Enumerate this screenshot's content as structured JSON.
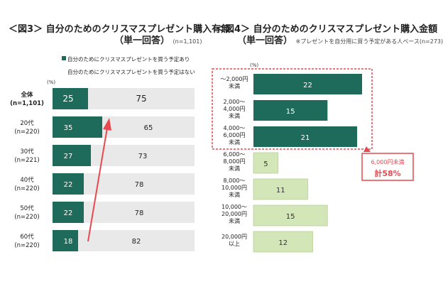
{
  "chart_data": [
    {
      "type": "bar",
      "orientation": "horizontal",
      "stacked": true,
      "title": "＜図3＞ 自分のためのクリスマスプレゼント購入有無",
      "subtitle": "（単一回答）",
      "sample_note": "(n=1,101)",
      "unit_label": "(%)",
      "categories": [
        {
          "line1": "全体",
          "line2": "(n=1,101)"
        },
        {
          "line1": "20代",
          "line2": "(n=220)"
        },
        {
          "line1": "30代",
          "line2": "(n=221)"
        },
        {
          "line1": "40代",
          "line2": "(n=220)"
        },
        {
          "line1": "50代",
          "line2": "(n=220)"
        },
        {
          "line1": "60代",
          "line2": "(n=220)"
        }
      ],
      "series": [
        {
          "name": "自分のためにクリスマスプレゼントを買う予定あり",
          "color": "#1f6b5b",
          "values": [
            25,
            35,
            27,
            22,
            22,
            18
          ]
        },
        {
          "name": "自分のためにクリスマスプレゼントを買う予定はない",
          "color": "#e9e9e9",
          "values": [
            75,
            65,
            73,
            78,
            78,
            82
          ]
        }
      ],
      "xlim": [
        0,
        100
      ],
      "legend": "top-right",
      "annotation": {
        "type": "arrow",
        "color": "#e8494f",
        "from": "60代",
        "to": "20代"
      }
    },
    {
      "type": "bar",
      "orientation": "horizontal",
      "title": "＜図4＞ 自分のためのクリスマスプレゼント購入金額",
      "subtitle": "（単一回答）",
      "sample_note": "※プレゼントを自分用に買う予定がある人ベース(n=273)",
      "unit_label": "(%)",
      "categories": [
        {
          "line1": "～2,000円",
          "line2": "未満"
        },
        {
          "line1": "2,000～",
          "line2": "4,000円",
          "line3": "未満"
        },
        {
          "line1": "4,000～",
          "line2": "6,000円",
          "line3": "未満"
        },
        {
          "line1": "6,000～",
          "line2": "8,000円",
          "line3": "未満"
        },
        {
          "line1": "8,000～",
          "line2": "10,000円",
          "line3": "未満"
        },
        {
          "line1": "10,000～",
          "line2": "20,000円",
          "line3": "未満"
        },
        {
          "line1": "20,000円",
          "line2": "以上"
        }
      ],
      "values": [
        22,
        15,
        21,
        5,
        11,
        15,
        12
      ],
      "colors": {
        "highlight": "#1f6b5b",
        "normal": "#d3e6b8",
        "normal_border": "#b9d494"
      },
      "highlighted_count": 3,
      "xlim": [
        0,
        25
      ],
      "callout": {
        "line1": "6,000円未満",
        "line2": "計58%",
        "color": "#e8494f"
      }
    }
  ]
}
